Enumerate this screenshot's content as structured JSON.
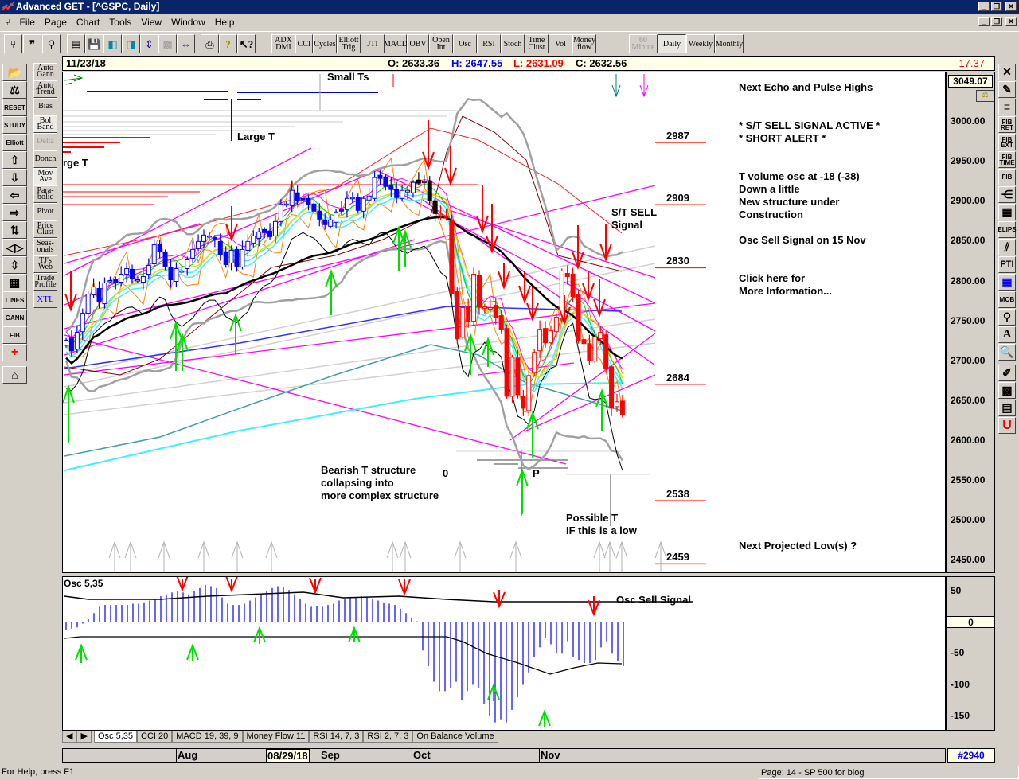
{
  "window": {
    "title": "Advanced GET - [^GSPC, Daily]"
  },
  "menu": [
    "File",
    "Page",
    "Chart",
    "Tools",
    "View",
    "Window",
    "Help"
  ],
  "toolbar": {
    "indicators": [
      "ADX DMI",
      "CCI",
      "Cycles",
      "Elliott Trig",
      "JTI",
      "MACD",
      "OBV",
      "Open Int",
      "Osc",
      "RSI",
      "Stoch",
      "Time Clust",
      "Vol",
      "Money flow"
    ],
    "timeframes": [
      "60 Minute",
      "Daily",
      "Weekly",
      "Monthly"
    ],
    "active_timeframe": "Daily"
  },
  "left_tools": [
    "Auto Gann",
    "Auto Trend",
    "Bias",
    "Bol Band",
    "Delta",
    "Donch",
    "Mov Ave",
    "Para- bolic",
    "Pivot",
    "Price Clust",
    "Seas- onals",
    "TJ's Web",
    "Trade Profile",
    "XTL"
  ],
  "left_icons": {
    "reset": "RESET",
    "study": "STUDY",
    "elliott": "Elliott",
    "lines": "LINES",
    "gann": "GANN",
    "fib": "FIB"
  },
  "right_tools": [
    "FIB RET",
    "FIB EXT",
    "FIB TIME",
    "FIB",
    "ELIPS",
    "PTI",
    "MOB",
    "A",
    "U"
  ],
  "header": {
    "date": "11/23/18",
    "open": "O: 2633.36",
    "high": "H: 2647.55",
    "low": "L: 2631.09",
    "close": "C: 2632.56",
    "change": "-17.37"
  },
  "price_axis": {
    "top_value": "3049.07",
    "ticks": [
      "3000.00",
      "2950.00",
      "2900.00",
      "2850.00",
      "2800.00",
      "2750.00",
      "2700.00",
      "2650.00",
      "2600.00",
      "2550.00",
      "2500.00",
      "2450.00"
    ]
  },
  "annotations": {
    "small_ts": "Small Ts",
    "large_t": "Large T",
    "large_t_left": "rge T",
    "next_echo": "Next Echo and Pulse Highs",
    "sell_active": "* S/T SELL SIGNAL ACTIVE *",
    "short_alert": "* SHORT ALERT *",
    "tvol": "T volume osc at -18 (-38)",
    "down": "Down a little",
    "new_struct": "New structure under",
    "construction": "Construction",
    "osc_sell_note": "Osc Sell Signal on 15 Nov",
    "click_here": "Click here for",
    "more_info": "More Information...",
    "st_sell": "S/T SELL",
    "signal": "Signal",
    "bearish1": "Bearish T structure",
    "bearish2": "collapsing into",
    "bearish3": "more complex structure",
    "zero": "0",
    "p": "P",
    "possible_t": "Possible T",
    "if_low": "IF this is a low",
    "next_low": "Next Projected Low(s) ?"
  },
  "levels": [
    "2987",
    "2909",
    "2830",
    "2684",
    "2538",
    "2459"
  ],
  "main_chart": {
    "symbol": "^GSPC",
    "interval": "Daily",
    "closes": [
      2726,
      2713,
      2736,
      2760,
      2784,
      2793,
      2775,
      2798,
      2801,
      2798,
      2809,
      2816,
      2804,
      2802,
      2806,
      2820,
      2846,
      2837,
      2819,
      2802,
      2816,
      2813,
      2827,
      2840,
      2850,
      2858,
      2857,
      2853,
      2833,
      2821,
      2839,
      2818,
      2840,
      2850,
      2857,
      2862,
      2861,
      2856,
      2875,
      2897,
      2897,
      2914,
      2901,
      2902,
      2896,
      2888,
      2878,
      2871,
      2877,
      2887,
      2888,
      2904,
      2905,
      2889,
      2904,
      2907,
      2930,
      2929,
      2919,
      2915,
      2905,
      2914,
      2914,
      2924,
      2923,
      2925,
      2901,
      2885,
      2884,
      2880,
      2785,
      2728,
      2767,
      2750,
      2809,
      2768,
      2768,
      2767,
      2755,
      2740,
      2656,
      2705,
      2658,
      2641,
      2682,
      2711,
      2740,
      2723,
      2738,
      2755,
      2813,
      2806,
      2781,
      2726,
      2722,
      2701,
      2730,
      2736,
      2690,
      2641,
      2649,
      2633
    ],
    "colors": {
      "up_trend": "#0000ff",
      "down_trend": "#ff0000",
      "neutral": "#000000",
      "trendlines": "#ff00ff",
      "buy_arrow": "#00e000",
      "sell_arrow": "#ff0000"
    }
  },
  "oscillator": {
    "label": "Osc 5,35",
    "sell_label": "Osc Sell Signal",
    "ticks": [
      "50",
      "0",
      "-50",
      "-100",
      "-150"
    ],
    "values": [
      -12,
      -10,
      -8,
      -2,
      5,
      15,
      25,
      28,
      28,
      28,
      28,
      28,
      30,
      30,
      32,
      35,
      38,
      42,
      45,
      48,
      50,
      48,
      45,
      50,
      55,
      60,
      58,
      55,
      40,
      30,
      28,
      28,
      30,
      35,
      40,
      45,
      50,
      55,
      58,
      56,
      52,
      45,
      38,
      30,
      25,
      26,
      25,
      28,
      30,
      35,
      38,
      40,
      40,
      42,
      40,
      38,
      35,
      32,
      30,
      28,
      22,
      15,
      8,
      2,
      -45,
      -70,
      -95,
      -110,
      -110,
      -105,
      -95,
      -125,
      -110,
      -100,
      -105,
      -130,
      -150,
      -160,
      -155,
      -160,
      -140,
      -120,
      -100,
      -80,
      -55,
      -40,
      -25,
      -35,
      -50,
      -50,
      -30,
      -55,
      -60,
      -65,
      -65,
      -60,
      -40,
      -30,
      -50,
      -62,
      -70,
      -70
    ]
  },
  "tabs": [
    "Osc 5,35",
    "CCI 20",
    "MACD 19, 39, 9",
    "Money Flow 11",
    "RSI 14, 7, 3",
    "RSI 2, 7, 3",
    "On Balance Volume"
  ],
  "date_axis": {
    "months": [
      "Aug",
      "Sep",
      "Oct",
      "Nov"
    ],
    "cursor_date": "08/29/18",
    "bar_count": "#2940"
  },
  "status": {
    "help": "For Help, press F1",
    "page": "Page: 14 - SP 500 for blog"
  }
}
